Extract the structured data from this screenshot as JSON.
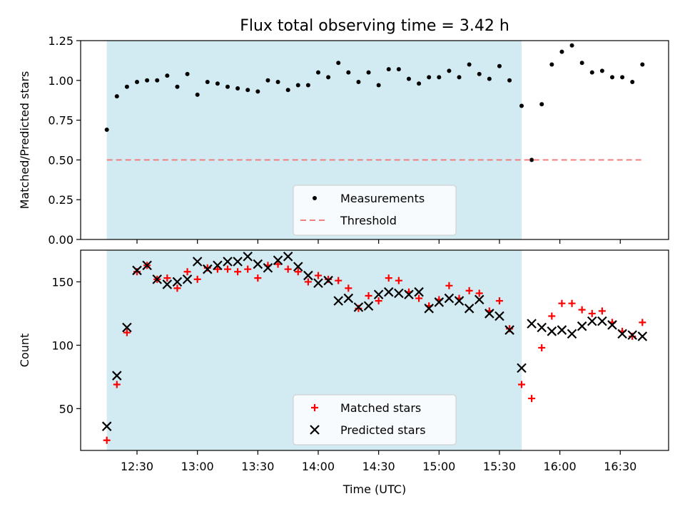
{
  "figure_title": "Flux total observing time = 3.42 h",
  "colors": {
    "shade": "#add8e6",
    "measurement": "#000000",
    "threshold": "#f08080",
    "matched": "#ff0000",
    "predicted": "#000000"
  },
  "chart_data": [
    {
      "type": "scatter",
      "title": "Flux total observing time = 3.42 h",
      "ylabel": "Matched/Predicted stars",
      "xlabel": "",
      "ylim": [
        0,
        1.25
      ],
      "yticks": [
        "0.00",
        "0.25",
        "0.50",
        "0.75",
        "1.00",
        "1.25"
      ],
      "ytick_values": [
        0,
        0.25,
        0.5,
        0.75,
        1.0,
        1.25
      ],
      "shaded_span": [
        "12:15",
        "15:41"
      ],
      "legend": {
        "placement": "lower-center",
        "entries": [
          "Measurements",
          "Threshold"
        ]
      },
      "series": [
        {
          "name": "Measurements",
          "marker": "dot",
          "x": [
            "12:15",
            "12:20",
            "12:25",
            "12:30",
            "12:35",
            "12:40",
            "12:45",
            "12:50",
            "12:55",
            "13:00",
            "13:05",
            "13:10",
            "13:15",
            "13:20",
            "13:25",
            "13:30",
            "13:35",
            "13:40",
            "13:45",
            "13:50",
            "13:55",
            "14:00",
            "14:05",
            "14:10",
            "14:15",
            "14:20",
            "14:25",
            "14:30",
            "14:35",
            "14:40",
            "14:45",
            "14:50",
            "14:55",
            "15:00",
            "15:05",
            "15:10",
            "15:15",
            "15:20",
            "15:25",
            "15:30",
            "15:35",
            "15:41",
            "15:46",
            "15:51",
            "15:56",
            "16:01",
            "16:06",
            "16:11",
            "16:16",
            "16:21",
            "16:26",
            "16:31",
            "16:36",
            "16:41"
          ],
          "y": [
            0.69,
            0.9,
            0.96,
            0.99,
            1.0,
            1.0,
            1.03,
            0.96,
            1.04,
            0.91,
            0.99,
            0.98,
            0.96,
            0.95,
            0.94,
            0.93,
            1.0,
            0.99,
            0.94,
            0.97,
            0.97,
            1.05,
            1.02,
            1.11,
            1.05,
            0.99,
            1.05,
            0.97,
            1.07,
            1.07,
            1.01,
            0.98,
            1.02,
            1.02,
            1.06,
            1.02,
            1.1,
            1.04,
            1.01,
            1.09,
            1.0,
            0.84,
            0.5,
            0.85,
            1.1,
            1.18,
            1.22,
            1.11,
            1.05,
            1.06,
            1.02,
            1.02,
            0.99,
            1.1
          ]
        },
        {
          "name": "Threshold",
          "marker": "dashed-line",
          "x": [
            "12:15",
            "16:41"
          ],
          "y": [
            0.5,
            0.5
          ]
        }
      ]
    },
    {
      "type": "scatter",
      "title": "",
      "ylabel": "Count",
      "xlabel": "Time (UTC)",
      "ylim": [
        17,
        175
      ],
      "yticks": [
        "50",
        "100",
        "150"
      ],
      "ytick_values": [
        50,
        100,
        150
      ],
      "xticks": [
        "12:30",
        "13:00",
        "13:30",
        "14:00",
        "14:30",
        "15:00",
        "15:30",
        "16:00",
        "16:30"
      ],
      "shaded_span": [
        "12:15",
        "15:41"
      ],
      "legend": {
        "placement": "lower-center",
        "entries": [
          "Matched stars",
          "Predicted stars"
        ]
      },
      "series": [
        {
          "name": "Matched stars",
          "marker": "plus",
          "x": [
            "12:15",
            "12:20",
            "12:25",
            "12:30",
            "12:35",
            "12:40",
            "12:45",
            "12:50",
            "12:55",
            "13:00",
            "13:05",
            "13:10",
            "13:15",
            "13:20",
            "13:25",
            "13:30",
            "13:35",
            "13:40",
            "13:45",
            "13:50",
            "13:55",
            "14:00",
            "14:05",
            "14:10",
            "14:15",
            "14:20",
            "14:25",
            "14:30",
            "14:35",
            "14:40",
            "14:45",
            "14:50",
            "14:55",
            "15:00",
            "15:05",
            "15:10",
            "15:15",
            "15:20",
            "15:25",
            "15:30",
            "15:35",
            "15:41",
            "15:46",
            "15:51",
            "15:56",
            "16:01",
            "16:06",
            "16:11",
            "16:16",
            "16:21",
            "16:26",
            "16:31",
            "16:36",
            "16:41"
          ],
          "y": [
            25,
            69,
            110,
            158,
            163,
            152,
            153,
            145,
            158,
            152,
            161,
            160,
            160,
            158,
            160,
            153,
            163,
            164,
            160,
            158,
            150,
            155,
            152,
            151,
            145,
            129,
            139,
            135,
            153,
            151,
            142,
            137,
            131,
            136,
            147,
            137,
            143,
            141,
            127,
            135,
            113,
            69,
            58,
            98,
            123,
            133,
            133,
            128,
            125,
            127,
            118,
            111,
            107,
            118
          ]
        },
        {
          "name": "Predicted stars",
          "marker": "x",
          "x": [
            "12:15",
            "12:20",
            "12:25",
            "12:30",
            "12:35",
            "12:40",
            "12:45",
            "12:50",
            "12:55",
            "13:00",
            "13:05",
            "13:10",
            "13:15",
            "13:20",
            "13:25",
            "13:30",
            "13:35",
            "13:40",
            "13:45",
            "13:50",
            "13:55",
            "14:00",
            "14:05",
            "14:10",
            "14:15",
            "14:20",
            "14:25",
            "14:30",
            "14:35",
            "14:40",
            "14:45",
            "14:50",
            "14:55",
            "15:00",
            "15:05",
            "15:10",
            "15:15",
            "15:20",
            "15:25",
            "15:30",
            "15:35",
            "15:41",
            "15:46",
            "15:51",
            "15:56",
            "16:01",
            "16:06",
            "16:11",
            "16:16",
            "16:21",
            "16:26",
            "16:31",
            "16:36",
            "16:41"
          ],
          "y": [
            36,
            76,
            114,
            159,
            163,
            152,
            148,
            150,
            152,
            166,
            160,
            163,
            166,
            166,
            170,
            164,
            161,
            167,
            170,
            162,
            155,
            149,
            151,
            135,
            137,
            130,
            131,
            140,
            142,
            141,
            140,
            142,
            129,
            134,
            137,
            135,
            129,
            136,
            125,
            123,
            112,
            82,
            117,
            114,
            111,
            112,
            109,
            115,
            119,
            119,
            116,
            109,
            108,
            107
          ]
        }
      ]
    }
  ]
}
